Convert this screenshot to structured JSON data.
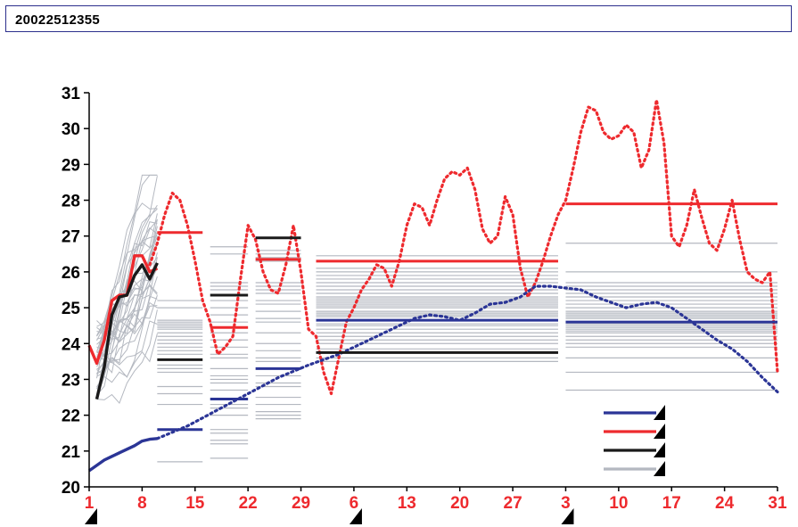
{
  "window": {
    "title": "20022512355"
  },
  "chart_data": {
    "type": "line",
    "ylim": [
      20,
      31
    ],
    "y_ticks": [
      "20",
      "21",
      "22",
      "23",
      "24",
      "25",
      "26",
      "27",
      "28",
      "29",
      "30",
      "31"
    ],
    "x_tick_labels": [
      "1",
      "8",
      "15",
      "22",
      "29",
      "6",
      "13",
      "20",
      "27",
      "3",
      "10",
      "17",
      "24",
      "31"
    ],
    "x_tick_days": [
      1,
      8,
      15,
      22,
      29,
      36,
      43,
      50,
      57,
      64,
      71,
      78,
      85,
      92
    ],
    "x_range": [
      1,
      92
    ],
    "month_markers": [
      1,
      36,
      64
    ],
    "colors": {
      "blue": "#2b3596",
      "red": "#ee2a2e",
      "black": "#1a1a1a",
      "gray": "#b4b8c0"
    },
    "series": [
      {
        "color": "red",
        "style": "solid",
        "x": [
          1,
          2,
          3,
          4,
          5,
          6,
          7,
          8,
          9,
          10
        ],
        "values": [
          23.95,
          23.45,
          24.1,
          25.2,
          25.35,
          25.35,
          26.45,
          26.45,
          26.0,
          26.1
        ]
      },
      {
        "color": "black",
        "style": "solid",
        "x": [
          2,
          3,
          4,
          5,
          6,
          7,
          8,
          9,
          10
        ],
        "values": [
          22.45,
          23.35,
          24.8,
          25.3,
          25.35,
          25.9,
          26.2,
          25.8,
          26.25
        ]
      },
      {
        "color": "blue",
        "style": "solid",
        "x": [
          1,
          2,
          3,
          4,
          5,
          6,
          7,
          8,
          9,
          10
        ],
        "values": [
          20.45,
          20.6,
          20.75,
          20.85,
          20.95,
          21.05,
          21.15,
          21.28,
          21.33,
          21.35
        ]
      },
      {
        "color": "red",
        "style": "dotted",
        "x": [
          9,
          10,
          11,
          12,
          13,
          14,
          15,
          16,
          17,
          18,
          19,
          20,
          21,
          22,
          23,
          24,
          25,
          26,
          27,
          28,
          29,
          30,
          31,
          32,
          33,
          34,
          35,
          36,
          37,
          38,
          39,
          40,
          41,
          42,
          43,
          44,
          45,
          46,
          47,
          48,
          49,
          50,
          51,
          52,
          53,
          54,
          55,
          56,
          57,
          58,
          59,
          60,
          61,
          62,
          63,
          64,
          65,
          66,
          67,
          68,
          69,
          70,
          71,
          72,
          73,
          74,
          75,
          76,
          77,
          78,
          79,
          80,
          81,
          82,
          83,
          84,
          85,
          86,
          87,
          88,
          89,
          90,
          91,
          92
        ],
        "values": [
          26.2,
          26.8,
          27.6,
          28.2,
          28.0,
          27.3,
          26.3,
          25.2,
          24.6,
          23.7,
          23.9,
          24.2,
          25.8,
          27.3,
          26.9,
          26.0,
          25.5,
          25.4,
          26.2,
          27.3,
          26.0,
          24.4,
          24.2,
          23.2,
          22.6,
          23.6,
          24.6,
          25.0,
          25.5,
          25.8,
          26.2,
          26.1,
          25.6,
          26.3,
          27.3,
          27.9,
          27.8,
          27.3,
          28.0,
          28.6,
          28.8,
          28.7,
          28.9,
          28.3,
          27.2,
          26.8,
          27.0,
          28.1,
          27.6,
          26.1,
          25.3,
          25.7,
          26.3,
          27.0,
          27.6,
          28.0,
          28.9,
          29.9,
          30.6,
          30.5,
          29.9,
          29.7,
          29.8,
          30.1,
          29.9,
          28.9,
          29.4,
          30.8,
          29.6,
          27.0,
          26.7,
          27.3,
          28.3,
          27.5,
          26.8,
          26.6,
          27.2,
          28.0,
          26.9,
          26.0,
          25.8,
          25.7,
          26.0,
          23.2
        ]
      },
      {
        "color": "blue",
        "style": "dotted",
        "x": [
          10,
          14,
          18,
          22,
          26,
          30,
          34,
          38,
          42,
          44,
          46,
          48,
          50,
          52,
          54,
          56,
          58,
          60,
          62,
          64,
          66,
          68,
          70,
          72,
          74,
          76,
          78,
          80,
          82,
          84,
          86,
          88,
          90,
          92
        ],
        "values": [
          21.35,
          21.7,
          22.15,
          22.6,
          23.05,
          23.4,
          23.7,
          24.1,
          24.5,
          24.7,
          24.8,
          24.75,
          24.65,
          24.85,
          25.1,
          25.15,
          25.3,
          25.6,
          25.6,
          25.55,
          25.5,
          25.3,
          25.15,
          25.0,
          25.1,
          25.15,
          25.0,
          24.7,
          24.4,
          24.1,
          23.85,
          23.5,
          23.05,
          22.65
        ]
      }
    ],
    "segments": [
      {
        "color": "red",
        "x0": 10,
        "x1": 16,
        "y": 27.1
      },
      {
        "color": "black",
        "x0": 10,
        "x1": 16,
        "y": 23.55
      },
      {
        "color": "blue",
        "x0": 10,
        "x1": 16,
        "y": 21.6
      },
      {
        "color": "black",
        "x0": 17,
        "x1": 22,
        "y": 25.35
      },
      {
        "color": "red",
        "x0": 17,
        "x1": 22,
        "y": 24.45
      },
      {
        "color": "blue",
        "x0": 17,
        "x1": 22,
        "y": 22.45
      },
      {
        "color": "black",
        "x0": 23,
        "x1": 29,
        "y": 26.95
      },
      {
        "color": "red",
        "x0": 23,
        "x1": 29,
        "y": 26.35
      },
      {
        "color": "blue",
        "x0": 23,
        "x1": 29,
        "y": 23.3
      },
      {
        "color": "red",
        "x0": 31,
        "x1": 63,
        "y": 26.3
      },
      {
        "color": "blue",
        "x0": 31,
        "x1": 63,
        "y": 24.65
      },
      {
        "color": "black",
        "x0": 31,
        "x1": 63,
        "y": 23.75
      },
      {
        "color": "red",
        "x0": 64,
        "x1": 92,
        "y": 27.9
      },
      {
        "color": "blue",
        "x0": 64,
        "x1": 92,
        "y": 24.6
      }
    ],
    "ensemble_lines": [
      {
        "x0": 10,
        "x1": 16,
        "values": [
          20.7,
          22.3,
          22.6,
          22.8,
          23.2,
          23.3,
          23.4,
          23.7,
          23.8,
          23.9,
          24.0,
          24.1,
          24.2,
          24.3,
          24.4,
          24.45,
          24.5,
          24.55,
          24.6,
          24.65,
          25.0,
          25.2
        ]
      },
      {
        "x0": 17,
        "x1": 22,
        "values": [
          20.8,
          21.2,
          21.3,
          21.5,
          21.6,
          22.0,
          22.2,
          22.3,
          22.7,
          22.9,
          23.0,
          23.1,
          23.3,
          23.6,
          23.7,
          23.9,
          24.1,
          24.3,
          24.6,
          24.8,
          25.0,
          25.2,
          25.5,
          25.6,
          25.7,
          26.5,
          26.7
        ]
      },
      {
        "x0": 23,
        "x1": 29,
        "values": [
          21.9,
          22.0,
          22.1,
          22.3,
          22.5,
          22.8,
          22.9,
          23.1,
          23.5,
          23.6,
          23.8,
          24.0,
          24.3,
          24.6,
          24.7,
          24.9,
          25.1,
          25.2,
          25.4,
          25.5,
          25.6,
          25.7,
          26.3,
          26.4,
          26.5,
          26.6
        ]
      },
      {
        "x0": 31,
        "x1": 63,
        "values": [
          23.5,
          23.6,
          23.85,
          24.0,
          24.1,
          24.2,
          24.3,
          24.4,
          24.5,
          24.55,
          24.75,
          24.8,
          24.85,
          24.9,
          25.0,
          25.05,
          25.1,
          25.15,
          25.2,
          25.25,
          25.3,
          25.4,
          25.5,
          25.6,
          25.7,
          25.8,
          25.9,
          26.0,
          26.1,
          26.45
        ]
      },
      {
        "x0": 64,
        "x1": 92,
        "values": [
          22.7,
          23.2,
          23.6,
          23.9,
          24.0,
          24.1,
          24.2,
          24.3,
          24.35,
          24.4,
          24.45,
          24.5,
          24.55,
          24.7,
          24.75,
          24.8,
          24.85,
          24.9,
          25.0,
          25.1,
          25.2,
          25.3,
          25.4,
          25.5,
          25.6,
          25.7,
          26.0,
          26.8
        ]
      }
    ],
    "legend": {
      "placement": "bottom-right",
      "items": [
        {
          "color": "blue"
        },
        {
          "color": "red"
        },
        {
          "color": "black"
        },
        {
          "color": "gray"
        }
      ]
    }
  }
}
